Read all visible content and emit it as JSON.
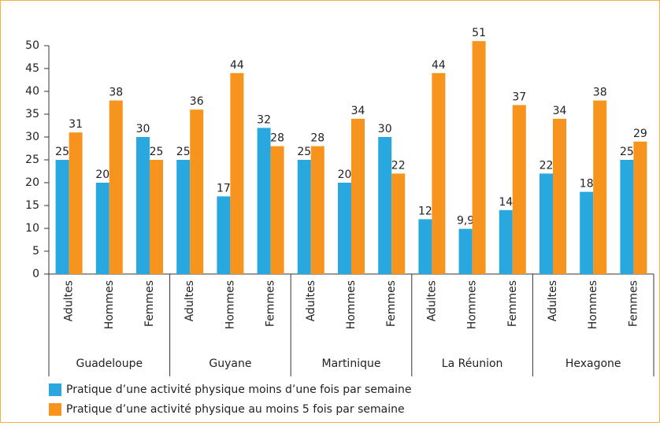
{
  "chart_data": {
    "type": "bar",
    "groups": [
      {
        "name": "Guadeloupe",
        "categories": [
          "Adultes",
          "Hommes",
          "Femmes"
        ]
      },
      {
        "name": "Guyane",
        "categories": [
          "Adultes",
          "Hommes",
          "Femmes"
        ]
      },
      {
        "name": "Martinique",
        "categories": [
          "Adultes",
          "Hommes",
          "Femmes"
        ]
      },
      {
        "name": "La Réunion",
        "categories": [
          "Adultes",
          "Hommes",
          "Femmes"
        ]
      },
      {
        "name": "Hexagone",
        "categories": [
          "Adultes",
          "Hommes",
          "Femmes"
        ]
      }
    ],
    "series": [
      {
        "name": "Pratique d’une activité physique moins d’une fois par semaine",
        "color": "#29a8e0",
        "values": [
          25,
          20,
          30,
          25,
          17,
          32,
          25,
          20,
          30,
          12,
          9.9,
          14,
          22,
          18,
          25
        ],
        "value_labels": [
          "25",
          "20",
          "30",
          "25",
          "17",
          "32",
          "25",
          "20",
          "30",
          "12",
          "9,9",
          "14",
          "22",
          "18",
          "25"
        ]
      },
      {
        "name": "Pratique d’une activité physique au moins 5 fois par semaine",
        "color": "#f7941d",
        "values": [
          31,
          38,
          25,
          36,
          44,
          28,
          28,
          34,
          22,
          44,
          51,
          37,
          34,
          38,
          29
        ]
      }
    ],
    "ylim": [
      0,
      50
    ],
    "yticks": [
      0,
      5,
      10,
      15,
      20,
      25,
      30,
      35,
      40,
      45,
      50
    ],
    "grid": false
  }
}
